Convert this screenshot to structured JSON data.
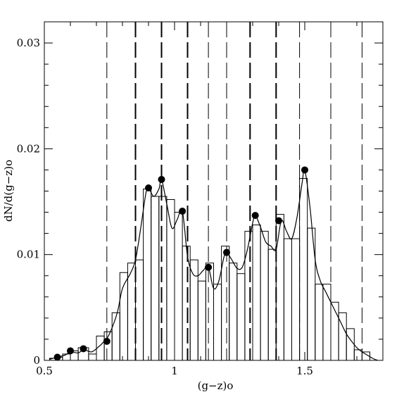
{
  "chart_data": {
    "type": "line",
    "title": "",
    "xlabel": "(g−z)o",
    "ylabel": "dN/d(g−z)o",
    "xlim": [
      0.5,
      1.8
    ],
    "ylim": [
      0,
      0.032
    ],
    "x_ticks": [
      {
        "value": 0.5,
        "label": "0.5"
      },
      {
        "value": 1.0,
        "label": "1"
      },
      {
        "value": 1.5,
        "label": "1.5"
      }
    ],
    "y_ticks": [
      {
        "value": 0,
        "label": "0"
      },
      {
        "value": 0.01,
        "label": "0.01"
      },
      {
        "value": 0.02,
        "label": "0.02"
      },
      {
        "value": 0.03,
        "label": "0.03"
      }
    ],
    "x_minor_step": 0.1,
    "y_minor_step": 0.002,
    "histogram": {
      "edges": [
        0.52,
        0.55,
        0.57,
        0.6,
        0.63,
        0.67,
        0.7,
        0.73,
        0.76,
        0.79,
        0.82,
        0.85,
        0.88,
        0.91,
        0.94,
        0.97,
        1.0,
        1.03,
        1.06,
        1.09,
        1.12,
        1.15,
        1.18,
        1.21,
        1.24,
        1.27,
        1.3,
        1.33,
        1.36,
        1.39,
        1.42,
        1.45,
        1.48,
        1.51,
        1.54,
        1.57,
        1.6,
        1.63,
        1.66,
        1.69,
        1.72,
        1.75
      ],
      "values": [
        0.0002,
        0.0003,
        0.0006,
        0.0009,
        0.0012,
        0.0006,
        0.0023,
        0.0027,
        0.0045,
        0.0083,
        0.0092,
        0.0095,
        0.0162,
        0.0155,
        0.0155,
        0.0152,
        0.014,
        0.0108,
        0.0095,
        0.0075,
        0.0092,
        0.0072,
        0.0108,
        0.0092,
        0.0082,
        0.0122,
        0.0128,
        0.0122,
        0.0105,
        0.0138,
        0.0115,
        0.0115,
        0.0172,
        0.0125,
        0.0072,
        0.0072,
        0.0055,
        0.0045,
        0.003,
        0.001,
        0.0008
      ]
    },
    "smooth_curve": {
      "x": [
        0.52,
        0.55,
        0.58,
        0.6,
        0.63,
        0.65,
        0.68,
        0.7,
        0.73,
        0.75,
        0.78,
        0.8,
        0.83,
        0.85,
        0.87,
        0.89,
        0.9,
        0.92,
        0.94,
        0.95,
        0.97,
        0.99,
        1.01,
        1.03,
        1.05,
        1.07,
        1.09,
        1.11,
        1.13,
        1.15,
        1.17,
        1.19,
        1.2,
        1.22,
        1.24,
        1.26,
        1.28,
        1.3,
        1.31,
        1.33,
        1.35,
        1.37,
        1.39,
        1.41,
        1.43,
        1.45,
        1.47,
        1.49,
        1.5,
        1.52,
        1.54,
        1.56,
        1.58,
        1.6,
        1.62,
        1.64,
        1.66,
        1.68,
        1.7,
        1.72,
        1.74,
        1.76,
        1.78
      ],
      "y": [
        0.0001,
        0.0003,
        0.0005,
        0.0008,
        0.0007,
        0.001,
        0.0008,
        0.0011,
        0.0018,
        0.0025,
        0.0045,
        0.0068,
        0.0082,
        0.0095,
        0.0125,
        0.0158,
        0.0163,
        0.0155,
        0.0162,
        0.0171,
        0.0148,
        0.0125,
        0.0133,
        0.0141,
        0.0098,
        0.0082,
        0.008,
        0.0085,
        0.0088,
        0.0068,
        0.0075,
        0.0098,
        0.0102,
        0.0095,
        0.0087,
        0.0088,
        0.0105,
        0.013,
        0.0137,
        0.0126,
        0.0112,
        0.0108,
        0.0105,
        0.0132,
        0.0122,
        0.0115,
        0.0135,
        0.0168,
        0.018,
        0.0145,
        0.0095,
        0.0075,
        0.0065,
        0.0055,
        0.0045,
        0.0035,
        0.0025,
        0.0018,
        0.0012,
        0.0008,
        0.0005,
        0.0002,
        0.0
      ]
    },
    "peak_points": {
      "x": [
        0.55,
        0.6,
        0.65,
        0.74,
        0.9,
        0.95,
        1.03,
        1.13,
        1.2,
        1.31,
        1.4,
        1.5
      ],
      "y": [
        0.0003,
        0.0009,
        0.0011,
        0.0018,
        0.0163,
        0.0171,
        0.0141,
        0.0088,
        0.0102,
        0.0137,
        0.0132,
        0.018
      ]
    },
    "vlines_heavy": [
      0.85,
      0.95,
      1.05,
      1.29,
      1.39
    ],
    "vlines_light": [
      0.74,
      1.13,
      1.2,
      1.48,
      1.6,
      1.72
    ],
    "grid": false,
    "legend": "none"
  }
}
